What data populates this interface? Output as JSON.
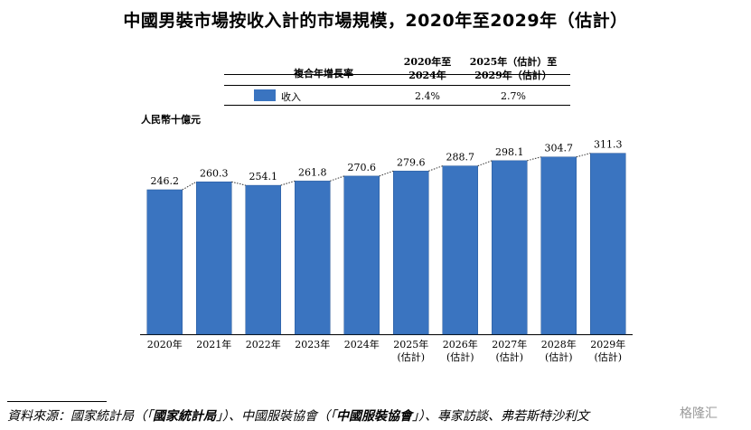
{
  "title": "中國男裝市場按收入計的市場規模，2020年至2029年（估計）",
  "cagr": {
    "header_label": "複合年增長率",
    "col1_line1": "2020年至",
    "col1_line2": "2024年",
    "col2_line1": "2025年（估計）至",
    "col2_line2": "2029年（估計）",
    "series_label": "收入",
    "col1_value": "2.4%",
    "col2_value": "2.7%"
  },
  "unit_label": "人民幣十億元",
  "colors": {
    "bar": "#3a74c0",
    "bar_edge": "#2a5a9a"
  },
  "chart_data": {
    "type": "bar",
    "categories": [
      "2020年",
      "2021年",
      "2022年",
      "2023年",
      "2024年",
      "2025年",
      "2026年",
      "2027年",
      "2028年",
      "2029年"
    ],
    "category_sublabels": [
      "",
      "",
      "",
      "",
      "",
      "(估計)",
      "(估計)",
      "(估計)",
      "(估計)",
      "(估計)"
    ],
    "values": [
      246.2,
      260.3,
      254.1,
      261.8,
      270.6,
      279.6,
      288.7,
      298.1,
      304.7,
      311.3
    ],
    "value_labels": [
      "246.2",
      "260.3",
      "254.1",
      "261.8",
      "270.6",
      "279.6",
      "288.7",
      "298.1",
      "304.7",
      "311.3"
    ],
    "ylabel": "人民幣十億元",
    "ylim": [
      0,
      320
    ],
    "grid": false
  },
  "source": {
    "prefix": "資料來源：國家統計局（「",
    "b1": "國家統計局",
    "mid1": "」）、中國服裝協會（「",
    "b2": "中國服裝協會",
    "mid2": "」）、專家訪談、弗若斯特沙利文"
  },
  "watermark": "格隆汇"
}
